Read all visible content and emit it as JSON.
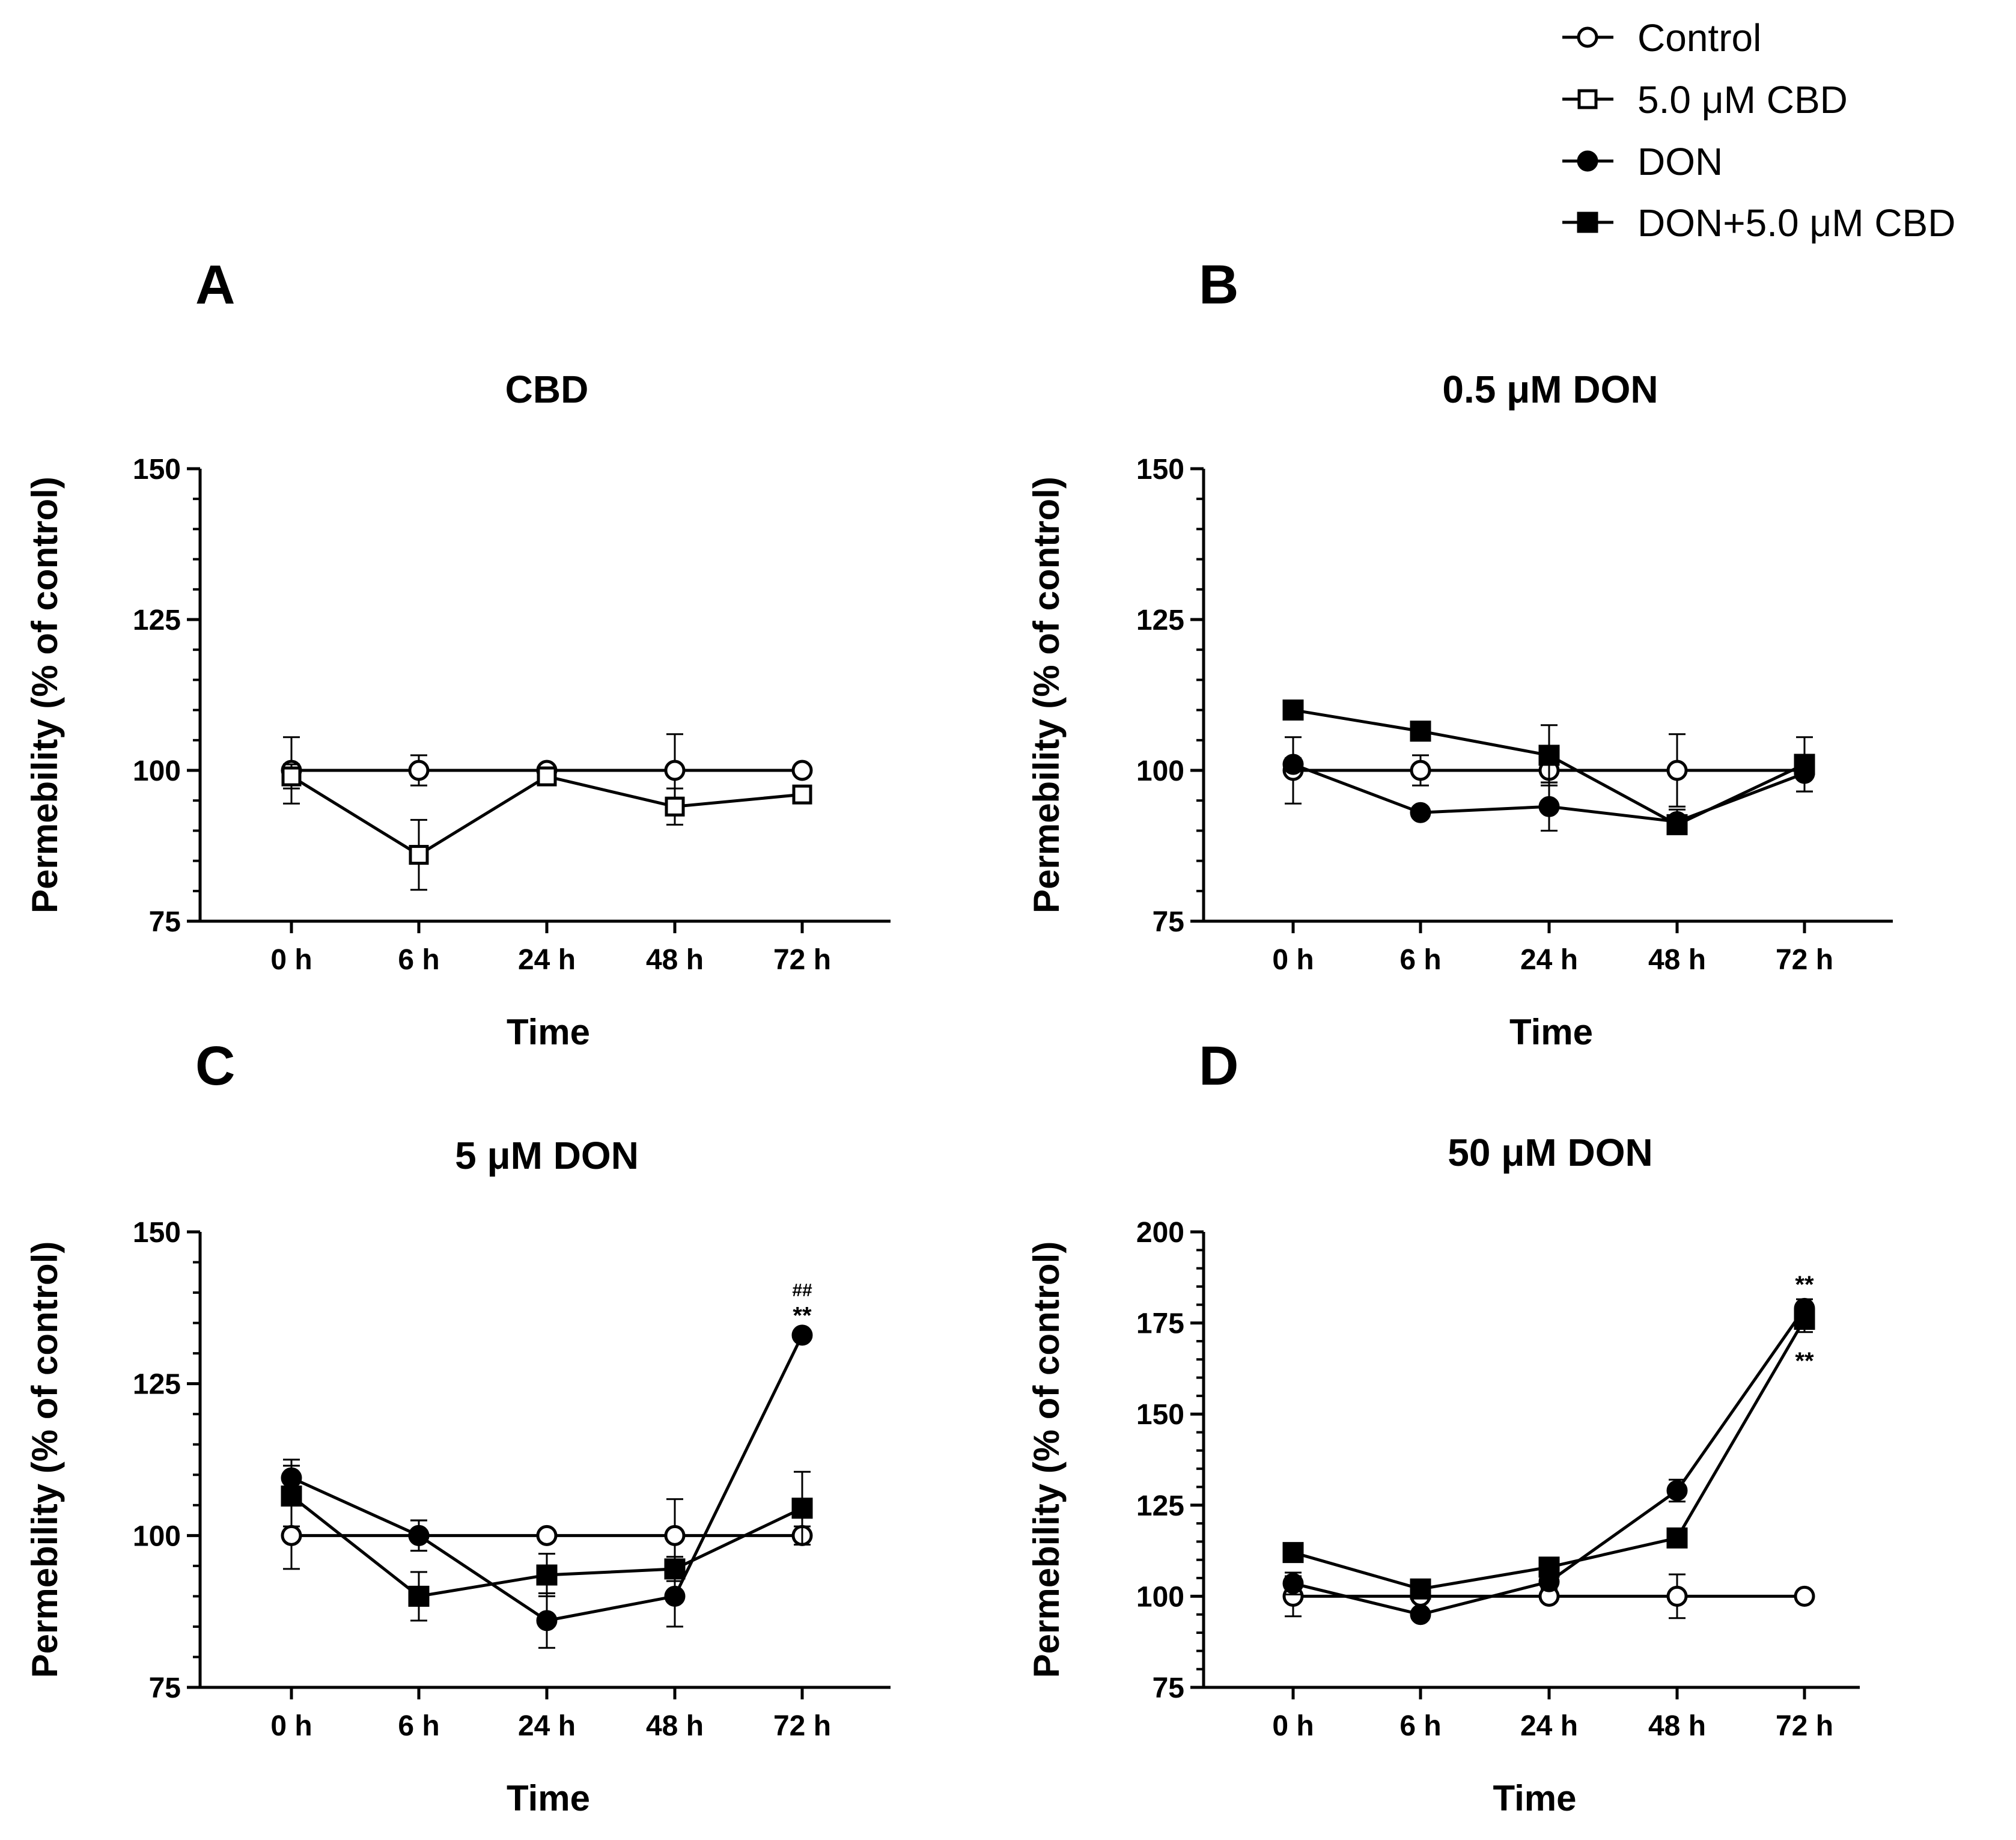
{
  "legend": [
    {
      "name": "Control",
      "marker": "circle-open"
    },
    {
      "name": "5.0 μM CBD",
      "marker": "square-open"
    },
    {
      "name": "DON",
      "marker": "circle-filled"
    },
    {
      "name": "DON+5.0 μM CBD",
      "marker": "square-filled"
    }
  ],
  "chart_data": [
    {
      "panel": "A",
      "type": "line",
      "title": "CBD",
      "xlabel": "Time",
      "ylabel": "Permebility (% of control)",
      "categories": [
        "0 h",
        "6 h",
        "24 h",
        "48 h",
        "72 h"
      ],
      "ylim": [
        75,
        150
      ],
      "yticks": [
        75,
        100,
        125,
        150
      ],
      "series": [
        {
          "name": "Control",
          "marker": "circle-open",
          "values": [
            100,
            100,
            100,
            100,
            100
          ],
          "errors": [
            5.5,
            2.5,
            0.5,
            6,
            0
          ]
        },
        {
          "name": "5.0 μM CBD",
          "marker": "square-open",
          "values": [
            99,
            86,
            99,
            94,
            96
          ],
          "errors": [
            2,
            5.8,
            0.8,
            3,
            1
          ]
        }
      ],
      "annotations": []
    },
    {
      "panel": "B",
      "type": "line",
      "title": "0.5 μM DON",
      "xlabel": "Time",
      "ylabel": "Permebility (% of control)",
      "categories": [
        "0 h",
        "6 h",
        "24 h",
        "48 h",
        "72 h"
      ],
      "ylim": [
        75,
        150
      ],
      "yticks": [
        75,
        100,
        125,
        150
      ],
      "series": [
        {
          "name": "Control",
          "marker": "circle-open",
          "values": [
            100,
            100,
            100,
            100,
            100
          ],
          "errors": [
            5.5,
            2.5,
            2,
            6,
            0.5
          ]
        },
        {
          "name": "DON",
          "marker": "circle-filled",
          "values": [
            101,
            93,
            94,
            91.5,
            99.5
          ],
          "errors": [
            1,
            0.8,
            4,
            2,
            3
          ]
        },
        {
          "name": "DON+5.0 μM CBD",
          "marker": "square-filled",
          "values": [
            110,
            106.5,
            102.5,
            91,
            101
          ],
          "errors": [
            0.5,
            0.8,
            5,
            1,
            4.5
          ]
        }
      ],
      "annotations": []
    },
    {
      "panel": "C",
      "type": "line",
      "title": "5 μM DON",
      "xlabel": "Time",
      "ylabel": "Permebility (% of control)",
      "categories": [
        "0 h",
        "6 h",
        "24 h",
        "48 h",
        "72 h"
      ],
      "ylim": [
        75,
        150
      ],
      "yticks": [
        75,
        100,
        125,
        150
      ],
      "series": [
        {
          "name": "Control",
          "marker": "circle-open",
          "values": [
            100,
            100,
            100,
            100,
            100
          ],
          "errors": [
            5.5,
            2.5,
            0.5,
            6,
            1.5
          ]
        },
        {
          "name": "DON",
          "marker": "circle-filled",
          "values": [
            109.5,
            100,
            86,
            90,
            133
          ],
          "errors": [
            3,
            2.5,
            4.5,
            5,
            0.8
          ]
        },
        {
          "name": "DON+5.0 μM CBD",
          "marker": "square-filled",
          "values": [
            106.5,
            90,
            93.5,
            94.5,
            104.5
          ],
          "errors": [
            5,
            4,
            3.5,
            2,
            6
          ]
        }
      ],
      "annotations": [
        {
          "category": "72 h",
          "value": 141,
          "text": "##"
        },
        {
          "category": "72 h",
          "value": 136.5,
          "text": "**"
        }
      ]
    },
    {
      "panel": "D",
      "type": "line",
      "title": "50 μM DON",
      "xlabel": "Time",
      "ylabel": "Permebility (% of control)",
      "categories": [
        "0 h",
        "6 h",
        "24 h",
        "48 h",
        "72 h"
      ],
      "ylim": [
        75,
        200
      ],
      "yticks": [
        75,
        100,
        125,
        150,
        175,
        200
      ],
      "series": [
        {
          "name": "Control",
          "marker": "circle-open",
          "values": [
            100,
            100,
            100,
            100,
            100
          ],
          "errors": [
            5.5,
            1.5,
            1,
            6,
            1
          ]
        },
        {
          "name": "DON",
          "marker": "circle-filled",
          "values": [
            103.5,
            95,
            104,
            129,
            179
          ],
          "errors": [
            3,
            1,
            2,
            3,
            2.5
          ]
        },
        {
          "name": "DON+5.0 μM CBD",
          "marker": "square-filled",
          "values": [
            112,
            102,
            108,
            116,
            176
          ],
          "errors": [
            1,
            1,
            1,
            1,
            3.5
          ]
        }
      ],
      "annotations": [
        {
          "category": "72 h",
          "value": 186,
          "text": "**"
        },
        {
          "category": "72 h",
          "value": 165,
          "text": "**"
        }
      ]
    }
  ]
}
